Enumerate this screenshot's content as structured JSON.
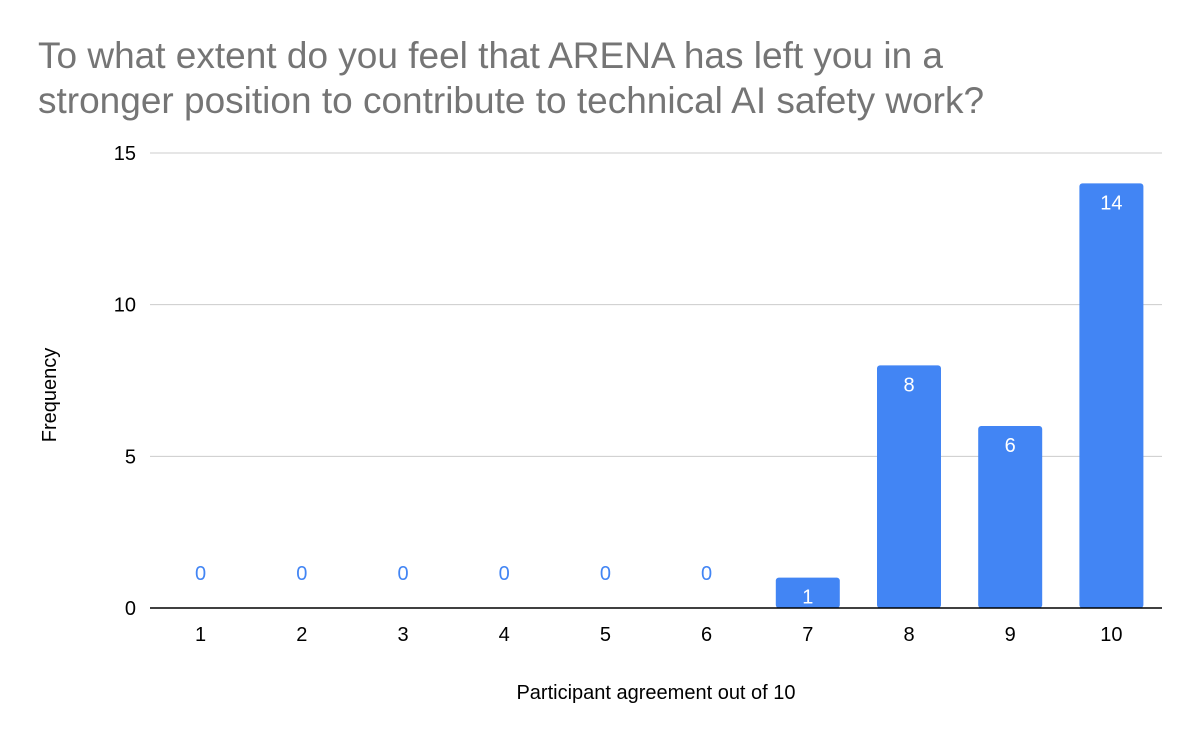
{
  "chart_data": {
    "type": "bar",
    "title_lines": [
      "To what extent do you feel that ARENA has left you in a",
      "stronger position to contribute to technical AI safety work?"
    ],
    "xlabel": "Participant agreement out of 10",
    "ylabel": "Frequency",
    "categories": [
      "1",
      "2",
      "3",
      "4",
      "5",
      "6",
      "7",
      "8",
      "9",
      "10"
    ],
    "values": [
      0,
      0,
      0,
      0,
      0,
      0,
      1,
      8,
      6,
      14
    ],
    "ylim": [
      0,
      15
    ],
    "yticks": [
      "0",
      "5",
      "10",
      "15"
    ],
    "grid": true,
    "legend": "none",
    "colors": {
      "bar": "#4285f4",
      "label_inside": "#ffffff",
      "label_outside": "#4285f4",
      "grid": "#cccccc",
      "axis": "#000000"
    }
  }
}
